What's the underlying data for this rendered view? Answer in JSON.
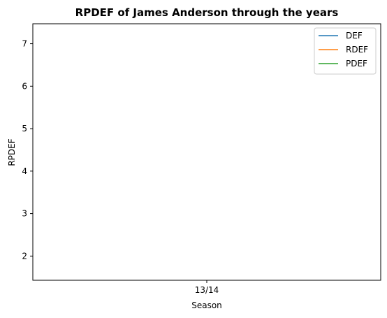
{
  "chart_data": {
    "type": "line",
    "title": "RPDEF of James Anderson through the years",
    "xlabel": "Season",
    "ylabel": "RPDEF",
    "categories": [
      "13/14"
    ],
    "ylim": [
      1.43,
      7.47
    ],
    "yticks": [
      2,
      3,
      4,
      5,
      6,
      7
    ],
    "grid": false,
    "legend_position": "top-right",
    "series": [
      {
        "name": "DEF",
        "color": "#1f77b4",
        "values": [
          null
        ]
      },
      {
        "name": "RDEF",
        "color": "#ff7f0e",
        "values": [
          null
        ]
      },
      {
        "name": "PDEF",
        "color": "#2ca02c",
        "values": [
          null
        ]
      }
    ]
  }
}
